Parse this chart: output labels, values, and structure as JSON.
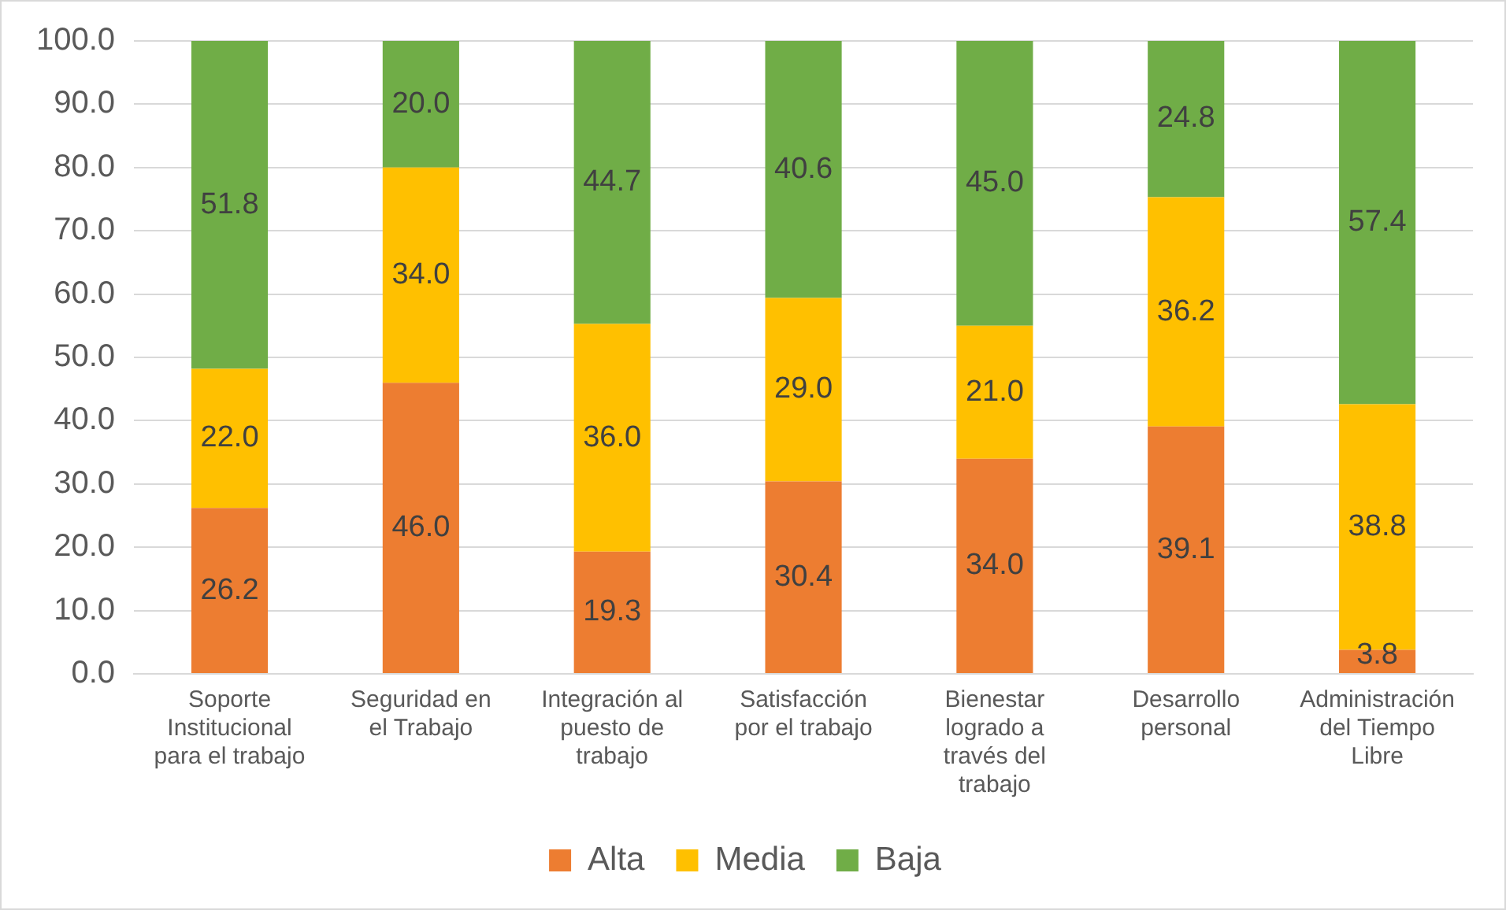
{
  "chart_data": {
    "type": "bar",
    "stacked": true,
    "categories": [
      "Soporte Institucional para el trabajo",
      "Seguridad en el Trabajo",
      "Integración al puesto de trabajo",
      "Satisfacción por el trabajo",
      "Bienestar logrado a través del trabajo",
      "Desarrollo personal",
      "Administración del Tiempo Libre"
    ],
    "series": [
      {
        "name": "Alta",
        "color": "#ed7d31",
        "values": [
          26.2,
          46.0,
          19.3,
          30.4,
          34.0,
          39.1,
          3.8
        ],
        "value_labels": [
          "26.2",
          "46.0",
          "19.3",
          "30.4",
          "34.0",
          "39.1",
          "3.8"
        ]
      },
      {
        "name": "Media",
        "color": "#ffc000",
        "values": [
          22.0,
          34.0,
          36.0,
          29.0,
          21.0,
          36.2,
          38.8
        ],
        "value_labels": [
          "22.0",
          "34.0",
          "36.0",
          "29.0",
          "21.0",
          "36.2",
          "38.8"
        ]
      },
      {
        "name": "Baja",
        "color": "#70ad47",
        "values": [
          51.8,
          20.0,
          44.7,
          40.6,
          45.0,
          24.8,
          57.4
        ],
        "value_labels": [
          "51.8",
          "20.0",
          "44.7",
          "40.6",
          "45.0",
          "24.8",
          "57.4"
        ]
      }
    ],
    "ylim": [
      0,
      100
    ],
    "yticks": [
      {
        "value": 0,
        "label": "0.0"
      },
      {
        "value": 10,
        "label": "10.0"
      },
      {
        "value": 20,
        "label": "20.0"
      },
      {
        "value": 30,
        "label": "30.0"
      },
      {
        "value": 40,
        "label": "40.0"
      },
      {
        "value": 50,
        "label": "50.0"
      },
      {
        "value": 60,
        "label": "60.0"
      },
      {
        "value": 70,
        "label": "70.0"
      },
      {
        "value": 80,
        "label": "80.0"
      },
      {
        "value": 90,
        "label": "90.0"
      },
      {
        "value": 100,
        "label": "100.0"
      }
    ],
    "grid": "y",
    "legend": "bottom"
  }
}
